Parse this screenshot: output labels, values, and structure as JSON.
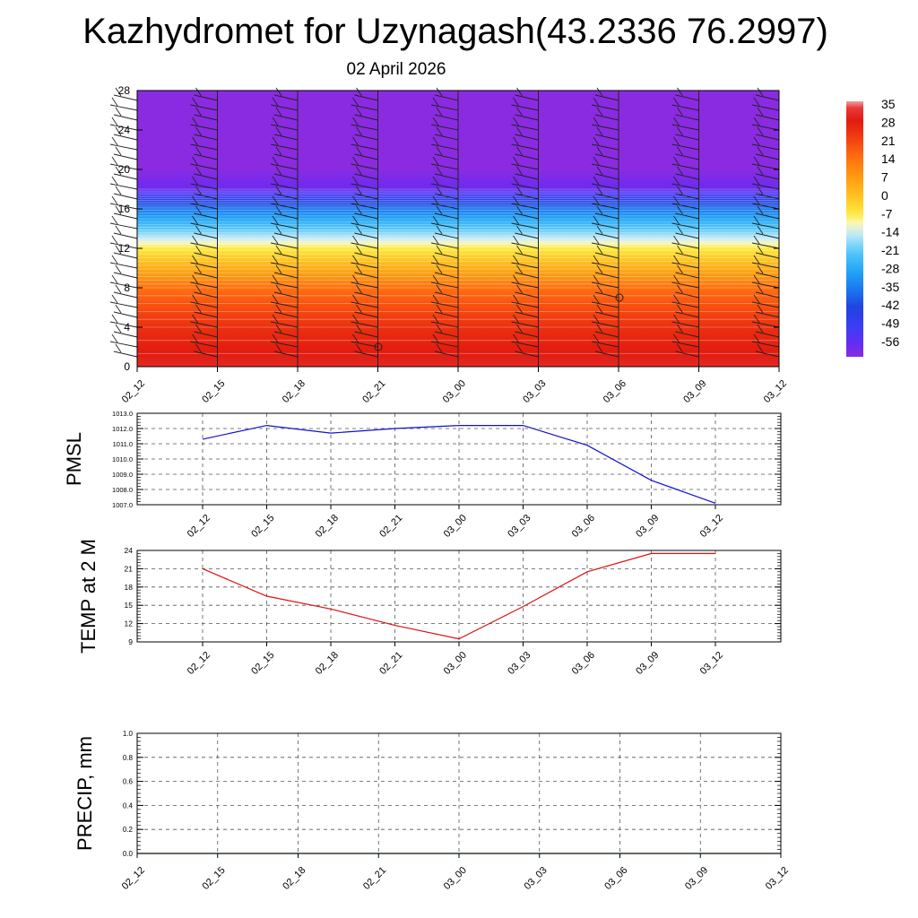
{
  "title": "Kazhydromet for Uzynagash(43.2336 76.2997)",
  "subtitle": "02 April 2026",
  "colors": {
    "pmsl_line": "#1010cc",
    "temp_line": "#dd1111",
    "precip_line": "#006400",
    "grid": "#555555"
  },
  "colorbar": {
    "labels": [
      "35",
      "28",
      "21",
      "14",
      "7",
      "0",
      "-7",
      "-14",
      "-21",
      "-28",
      "-35",
      "-42",
      "-49",
      "-56"
    ]
  },
  "chart_data": [
    {
      "type": "heatmap",
      "name": "vertical temperature cross-section",
      "x_categories": [
        "02_12",
        "02_15",
        "02_18",
        "02_21",
        "03_00",
        "03_03",
        "03_06",
        "03_09",
        "03_12"
      ],
      "yticks": [
        "0",
        "4",
        "8",
        "12",
        "16",
        "20",
        "24",
        "28"
      ],
      "ylim": [
        0,
        28
      ],
      "zlim": [
        -56,
        35
      ],
      "profile_levels": [
        0,
        4,
        8,
        12,
        16,
        18,
        20,
        28
      ],
      "profile_values": [
        30,
        24,
        14,
        -7,
        -35,
        -56,
        -60,
        -60
      ]
    },
    {
      "type": "line",
      "name": "pmsl",
      "ylabel": "PMSL",
      "categories": [
        "02_12",
        "02_15",
        "02_18",
        "02_21",
        "03_00",
        "03_03",
        "03_06",
        "03_09",
        "03_12"
      ],
      "values": [
        1011.3,
        1012.2,
        1011.7,
        1012.0,
        1012.2,
        1012.2,
        1010.9,
        1008.6,
        1007.1
      ],
      "ylim": [
        1007.0,
        1013.0
      ],
      "yticks": [
        "1007.0",
        "1008.0",
        "1009.0",
        "1010.0",
        "1011.0",
        "1012.0",
        "1013.0"
      ]
    },
    {
      "type": "line",
      "name": "temp2m",
      "ylabel": "TEMP at 2 M",
      "categories": [
        "02_12",
        "02_15",
        "02_18",
        "02_21",
        "03_00",
        "03_03",
        "03_06",
        "03_09",
        "03_12"
      ],
      "values": [
        21.0,
        16.5,
        14.4,
        11.7,
        9.5,
        14.8,
        20.5,
        23.5,
        23.5
      ],
      "ylim": [
        9,
        24
      ],
      "yticks": [
        "9",
        "12",
        "15",
        "18",
        "21",
        "24"
      ]
    },
    {
      "type": "line",
      "name": "precip",
      "ylabel": "PRECIP, mm",
      "categories": [
        "02_12",
        "02_15",
        "02_18",
        "02_21",
        "03_00",
        "03_03",
        "03_06",
        "03_09",
        "03_12"
      ],
      "values": [
        0,
        0,
        0,
        0,
        0,
        0,
        0,
        0,
        0
      ],
      "ylim": [
        0.0,
        1.0
      ],
      "yticks": [
        "0.0",
        "0.2",
        "0.4",
        "0.6",
        "0.8",
        "1.0"
      ]
    }
  ]
}
